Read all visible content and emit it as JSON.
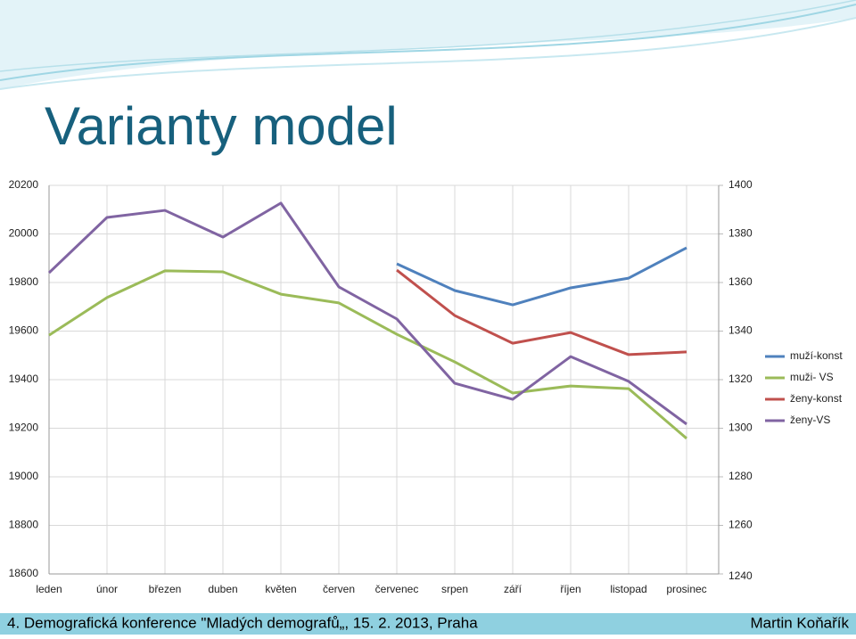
{
  "slide_title": "Varianty model",
  "footer_left": "4. Demografická konference \"Mladých demografů„, 15. 2. 2013, Praha",
  "footer_right": "Martin Koňařík",
  "chart_data": {
    "type": "line",
    "categories": [
      "leden",
      "únor",
      "březen",
      "duben",
      "květen",
      "červen",
      "červenec",
      "srpen",
      "září",
      "říjen",
      "listopad",
      "prosinec"
    ],
    "series": [
      {
        "name": "muží-konst",
        "color": "#4f81bd",
        "axis": "y2",
        "values": [
          null,
          null,
          null,
          null,
          null,
          null,
          1367.7,
          1356.7,
          1350.8,
          1357.8,
          1361.8,
          1374.3
        ]
      },
      {
        "name": "muži- VS",
        "color": "#9bbb59",
        "values": [
          19583,
          19738,
          19848,
          19844,
          19752,
          19716,
          19587,
          19473,
          19345,
          19374,
          19363,
          19158
        ]
      },
      {
        "name": "ženy-konst",
        "color": "#c0504d",
        "axis": "y2",
        "values": [
          null,
          null,
          null,
          null,
          null,
          null,
          1365.1,
          1346.4,
          1335,
          1339.4,
          1330.3,
          1331.4
        ]
      },
      {
        "name": "ženy-VS",
        "color": "#8064a2",
        "values": [
          19840,
          20068,
          20097,
          19987,
          20127,
          19782,
          19650,
          19385,
          19319,
          19495,
          19393,
          19217
        ]
      }
    ],
    "ylim": [
      18600,
      20200
    ],
    "yticks": [
      18600,
      18800,
      19000,
      19200,
      19400,
      19600,
      19800,
      20000,
      20200
    ],
    "y2lim": [
      1240,
      1400
    ],
    "y2ticks": [
      1240,
      1260,
      1280,
      1300,
      1320,
      1340,
      1360,
      1380,
      1400
    ],
    "grid": true,
    "legend": "right"
  }
}
